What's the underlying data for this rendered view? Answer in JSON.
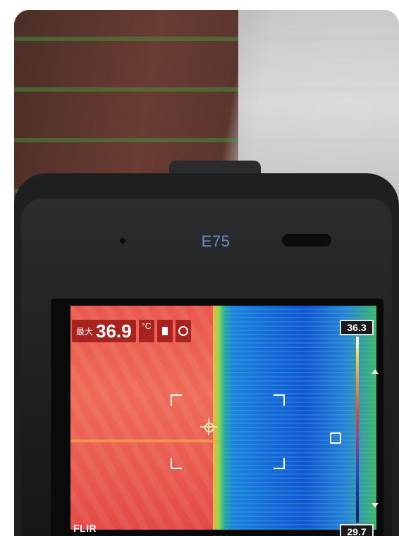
{
  "device": {
    "model_label": "E75"
  },
  "hud": {
    "max_label": "最大",
    "max_value": "36.9",
    "unit": "°C",
    "scale_high": "36.3",
    "scale_low": "29.7",
    "brand": "FLIR",
    "page_dots": "• • •"
  },
  "icons": {
    "battery": "battery-icon",
    "gps": "gps-icon",
    "lock": "lock-icon",
    "crosshair": "crosshair-icon",
    "scale_up": "arrow-up-icon",
    "scale_down": "arrow-down-icon"
  },
  "colors": {
    "hud_red": "#a8231f",
    "model_text": "#6a8ec4"
  }
}
